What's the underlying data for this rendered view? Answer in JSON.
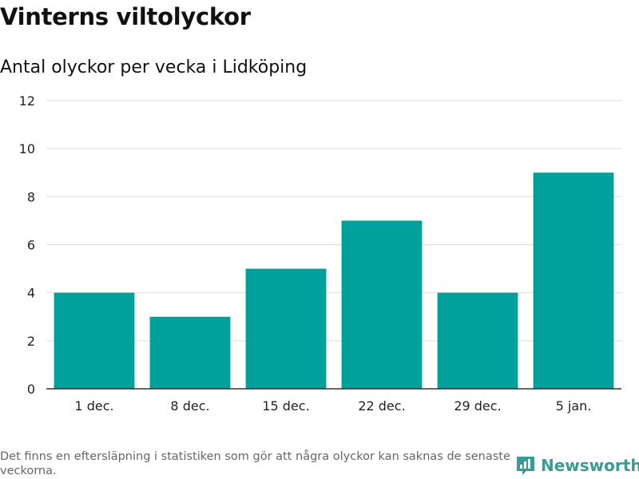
{
  "title": "Vinterns viltolyckor",
  "subtitle": "Antal olyckor per vecka i Lidköping",
  "footnote": "Det finns en eftersläpning i statistiken som gör att några olyckor kan saknas de senaste veckorna.",
  "brand": {
    "name": "Newsworthy",
    "color": "#3a9b94",
    "icon": "newsworthy-logo-icon"
  },
  "chart_data": {
    "type": "bar",
    "categories": [
      "1 dec.",
      "8 dec.",
      "15 dec.",
      "22 dec.",
      "29 dec.",
      "5 jan."
    ],
    "values": [
      4,
      3,
      5,
      7,
      4,
      9
    ],
    "ylim": [
      0,
      12
    ],
    "yticks": [
      0,
      2,
      4,
      6,
      8,
      10,
      12
    ],
    "grid": true,
    "bar_color": "#00a19a"
  }
}
